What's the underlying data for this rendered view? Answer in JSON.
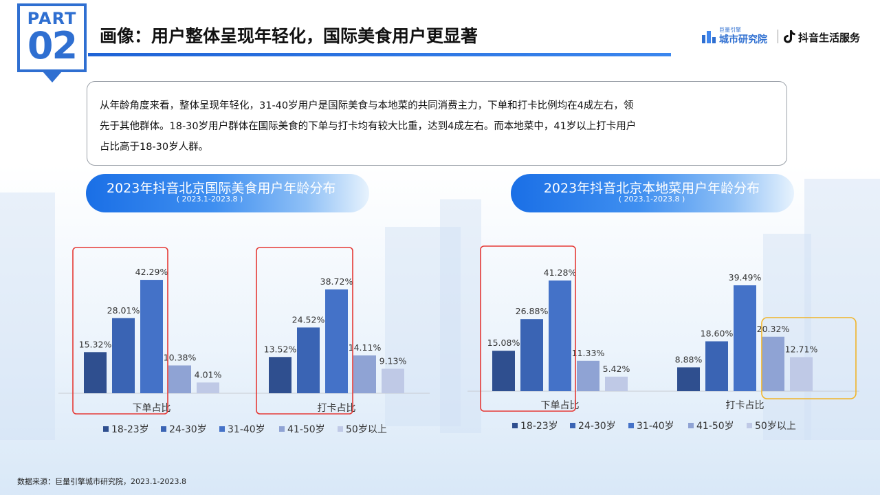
{
  "header": {
    "part_word": "PART",
    "part_number": "02",
    "title": "画像：用户整体呈现年轻化，国际美食用户更显著",
    "accent_color": "#2f6fd1"
  },
  "brand": {
    "small_text": "巨量引擎",
    "org_name": "城市研究院",
    "service_name": "抖音生活服务"
  },
  "description": {
    "lines": [
      "从年龄角度来看，整体呈现年轻化，31-40岁用户是国际美食与本地菜的共同消费主力，下单和打卡比例均在4成左右，领",
      "先于其他群体。18-30岁用户群体在国际美食的下单与打卡均有较大比重，达到4成左右。而本地菜中，41岁以上打卡用户",
      "占比高于18-30岁人群。"
    ]
  },
  "chart_data": [
    {
      "type": "bar",
      "title": "2023年抖音北京国际美食用户年龄分布",
      "subtitle": "( 2023.1-2023.8 )",
      "categories": [
        "下单占比",
        "打卡占比"
      ],
      "series": [
        {
          "name": "18-23岁",
          "color": "#2f4f8f",
          "values": [
            15.32,
            13.52
          ]
        },
        {
          "name": "24-30岁",
          "color": "#3a64b4",
          "values": [
            28.01,
            24.52
          ]
        },
        {
          "name": "31-40岁",
          "color": "#4472c8",
          "values": [
            42.29,
            38.72
          ]
        },
        {
          "name": "41-50岁",
          "color": "#8fa3d4",
          "values": [
            10.38,
            14.11
          ]
        },
        {
          "name": "50岁以上",
          "color": "#bfc9e6",
          "values": [
            4.01,
            9.13
          ]
        }
      ],
      "value_suffix": "%",
      "legend_position": "bottom",
      "highlight_groups": [
        0,
        1
      ],
      "highlight_color": "#e53935"
    },
    {
      "type": "bar",
      "title": "2023年抖音北京本地菜用户年龄分布",
      "subtitle": "( 2023.1-2023.8 )",
      "categories": [
        "下单占比",
        "打卡占比"
      ],
      "series": [
        {
          "name": "18-23岁",
          "color": "#2f4f8f",
          "values": [
            15.08,
            8.88
          ]
        },
        {
          "name": "24-30岁",
          "color": "#3a64b4",
          "values": [
            26.88,
            18.6
          ]
        },
        {
          "name": "31-40岁",
          "color": "#4472c8",
          "values": [
            41.28,
            39.49
          ]
        },
        {
          "name": "41-50岁",
          "color": "#8fa3d4",
          "values": [
            11.33,
            20.32
          ]
        },
        {
          "name": "50岁以上",
          "color": "#bfc9e6",
          "values": [
            5.42,
            12.71
          ]
        }
      ],
      "value_suffix": "%",
      "legend_position": "bottom",
      "highlight_groups": [
        0
      ],
      "highlight_color": "#e53935",
      "secondary_highlight": "打卡占比 41-50岁/50岁以上",
      "secondary_highlight_color": "#f0b429"
    }
  ],
  "footnote": "数据来源：巨量引擎城市研究院，2023.1-2023.8"
}
